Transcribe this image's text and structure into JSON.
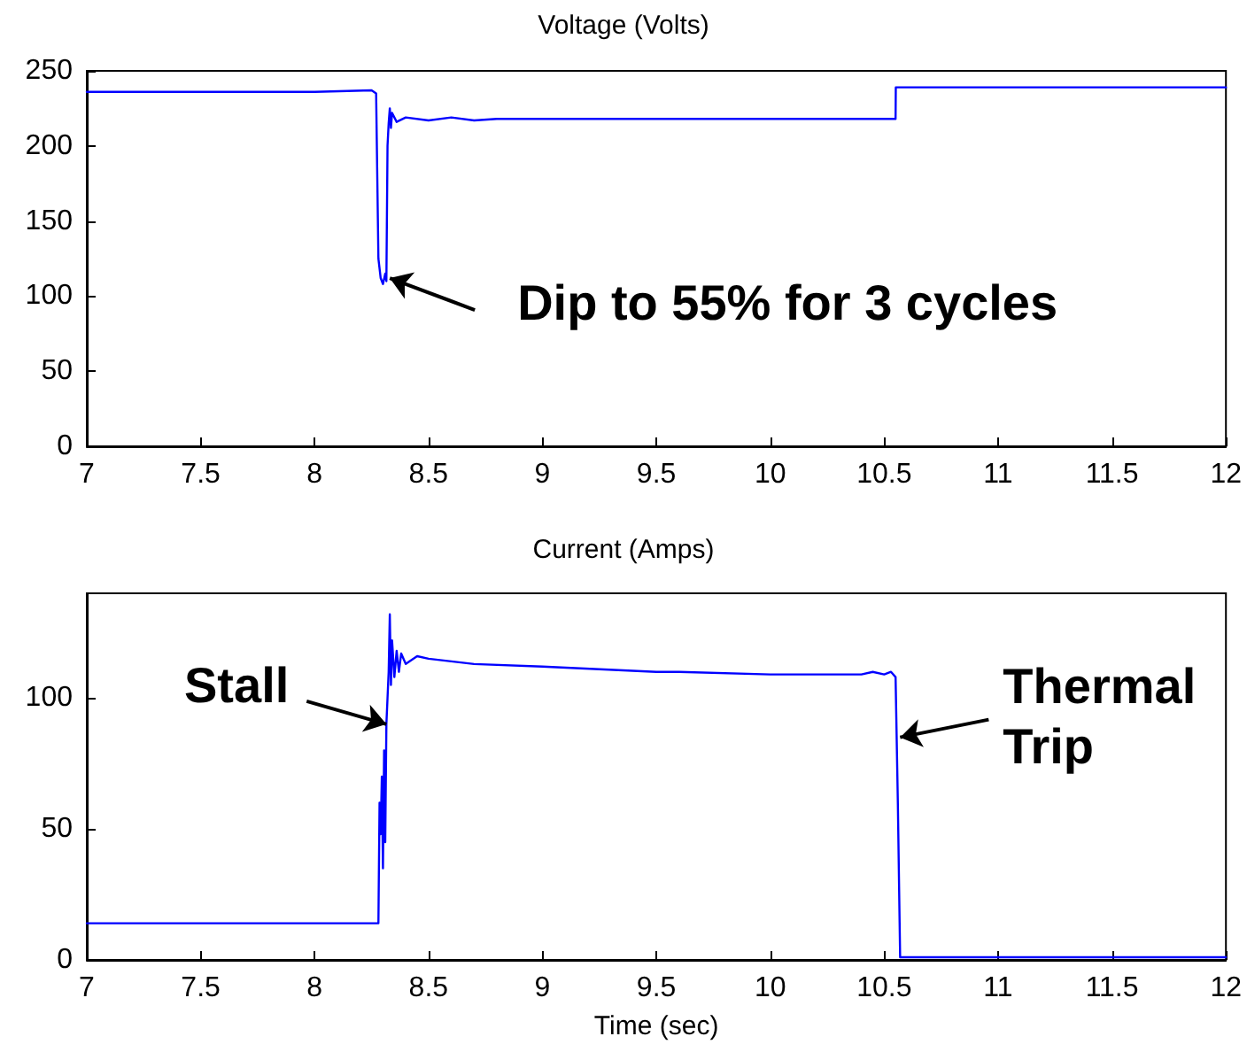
{
  "chart_data": [
    {
      "type": "line",
      "title": "Voltage (Volts)",
      "series": [
        {
          "color": "#0000ff",
          "x": [
            7,
            7.5,
            8.0,
            8.25,
            8.27,
            8.28,
            8.29,
            8.3,
            8.31,
            8.315,
            8.32,
            8.325,
            8.33,
            8.335,
            8.34,
            8.36,
            8.4,
            8.5,
            8.6,
            8.7,
            8.8,
            10.55,
            10.551,
            12
          ],
          "values": [
            236,
            236,
            236,
            237,
            235,
            125,
            112,
            108,
            115,
            110,
            200,
            215,
            225,
            212,
            222,
            216,
            219,
            217,
            219,
            217,
            218,
            218,
            239,
            239
          ]
        }
      ],
      "xlim": [
        7,
        12
      ],
      "xticks": [
        7,
        7.5,
        8,
        8.5,
        9,
        9.5,
        10,
        10.5,
        11,
        11.5,
        12
      ],
      "ylim": [
        0,
        250
      ],
      "yticks": [
        0,
        50,
        100,
        150,
        200,
        250
      ],
      "annotations": [
        {
          "text": "Dip to 55% for 3 cycles",
          "x": 8.33,
          "y": 112
        }
      ],
      "grid": false,
      "marker": "none",
      "line_style": "solid"
    },
    {
      "type": "line",
      "title": "Current (Amps)",
      "xlabel": "Time (sec)",
      "series": [
        {
          "color": "#0000ff",
          "x": [
            7,
            8.28,
            8.285,
            8.29,
            8.295,
            8.3,
            8.305,
            8.31,
            8.315,
            8.32,
            8.325,
            8.33,
            8.335,
            8.34,
            8.35,
            8.36,
            8.37,
            8.38,
            8.4,
            8.45,
            8.5,
            8.6,
            8.7,
            9.0,
            9.5,
            9.6,
            10.0,
            10.4,
            10.45,
            10.5,
            10.53,
            10.55,
            10.56,
            10.57,
            12
          ],
          "values": [
            14,
            14,
            60,
            48,
            70,
            35,
            80,
            45,
            90,
            100,
            110,
            132,
            105,
            122,
            108,
            118,
            110,
            117,
            113,
            116,
            115,
            114,
            113,
            112,
            110,
            110,
            109,
            109,
            110,
            109,
            110,
            108,
            60,
            1,
            1
          ]
        }
      ],
      "xlim": [
        7,
        12
      ],
      "xticks": [
        7,
        7.5,
        8,
        8.5,
        9,
        9.5,
        10,
        10.5,
        11,
        11.5,
        12
      ],
      "ylim": [
        0,
        140
      ],
      "yticks": [
        0,
        50,
        100
      ],
      "annotations": [
        {
          "text": "Stall",
          "x": 8.315,
          "y": 90
        },
        {
          "text": "Thermal Trip",
          "x": 10.57,
          "y": 85
        }
      ],
      "grid": false,
      "marker": "none",
      "line_style": "solid"
    }
  ]
}
